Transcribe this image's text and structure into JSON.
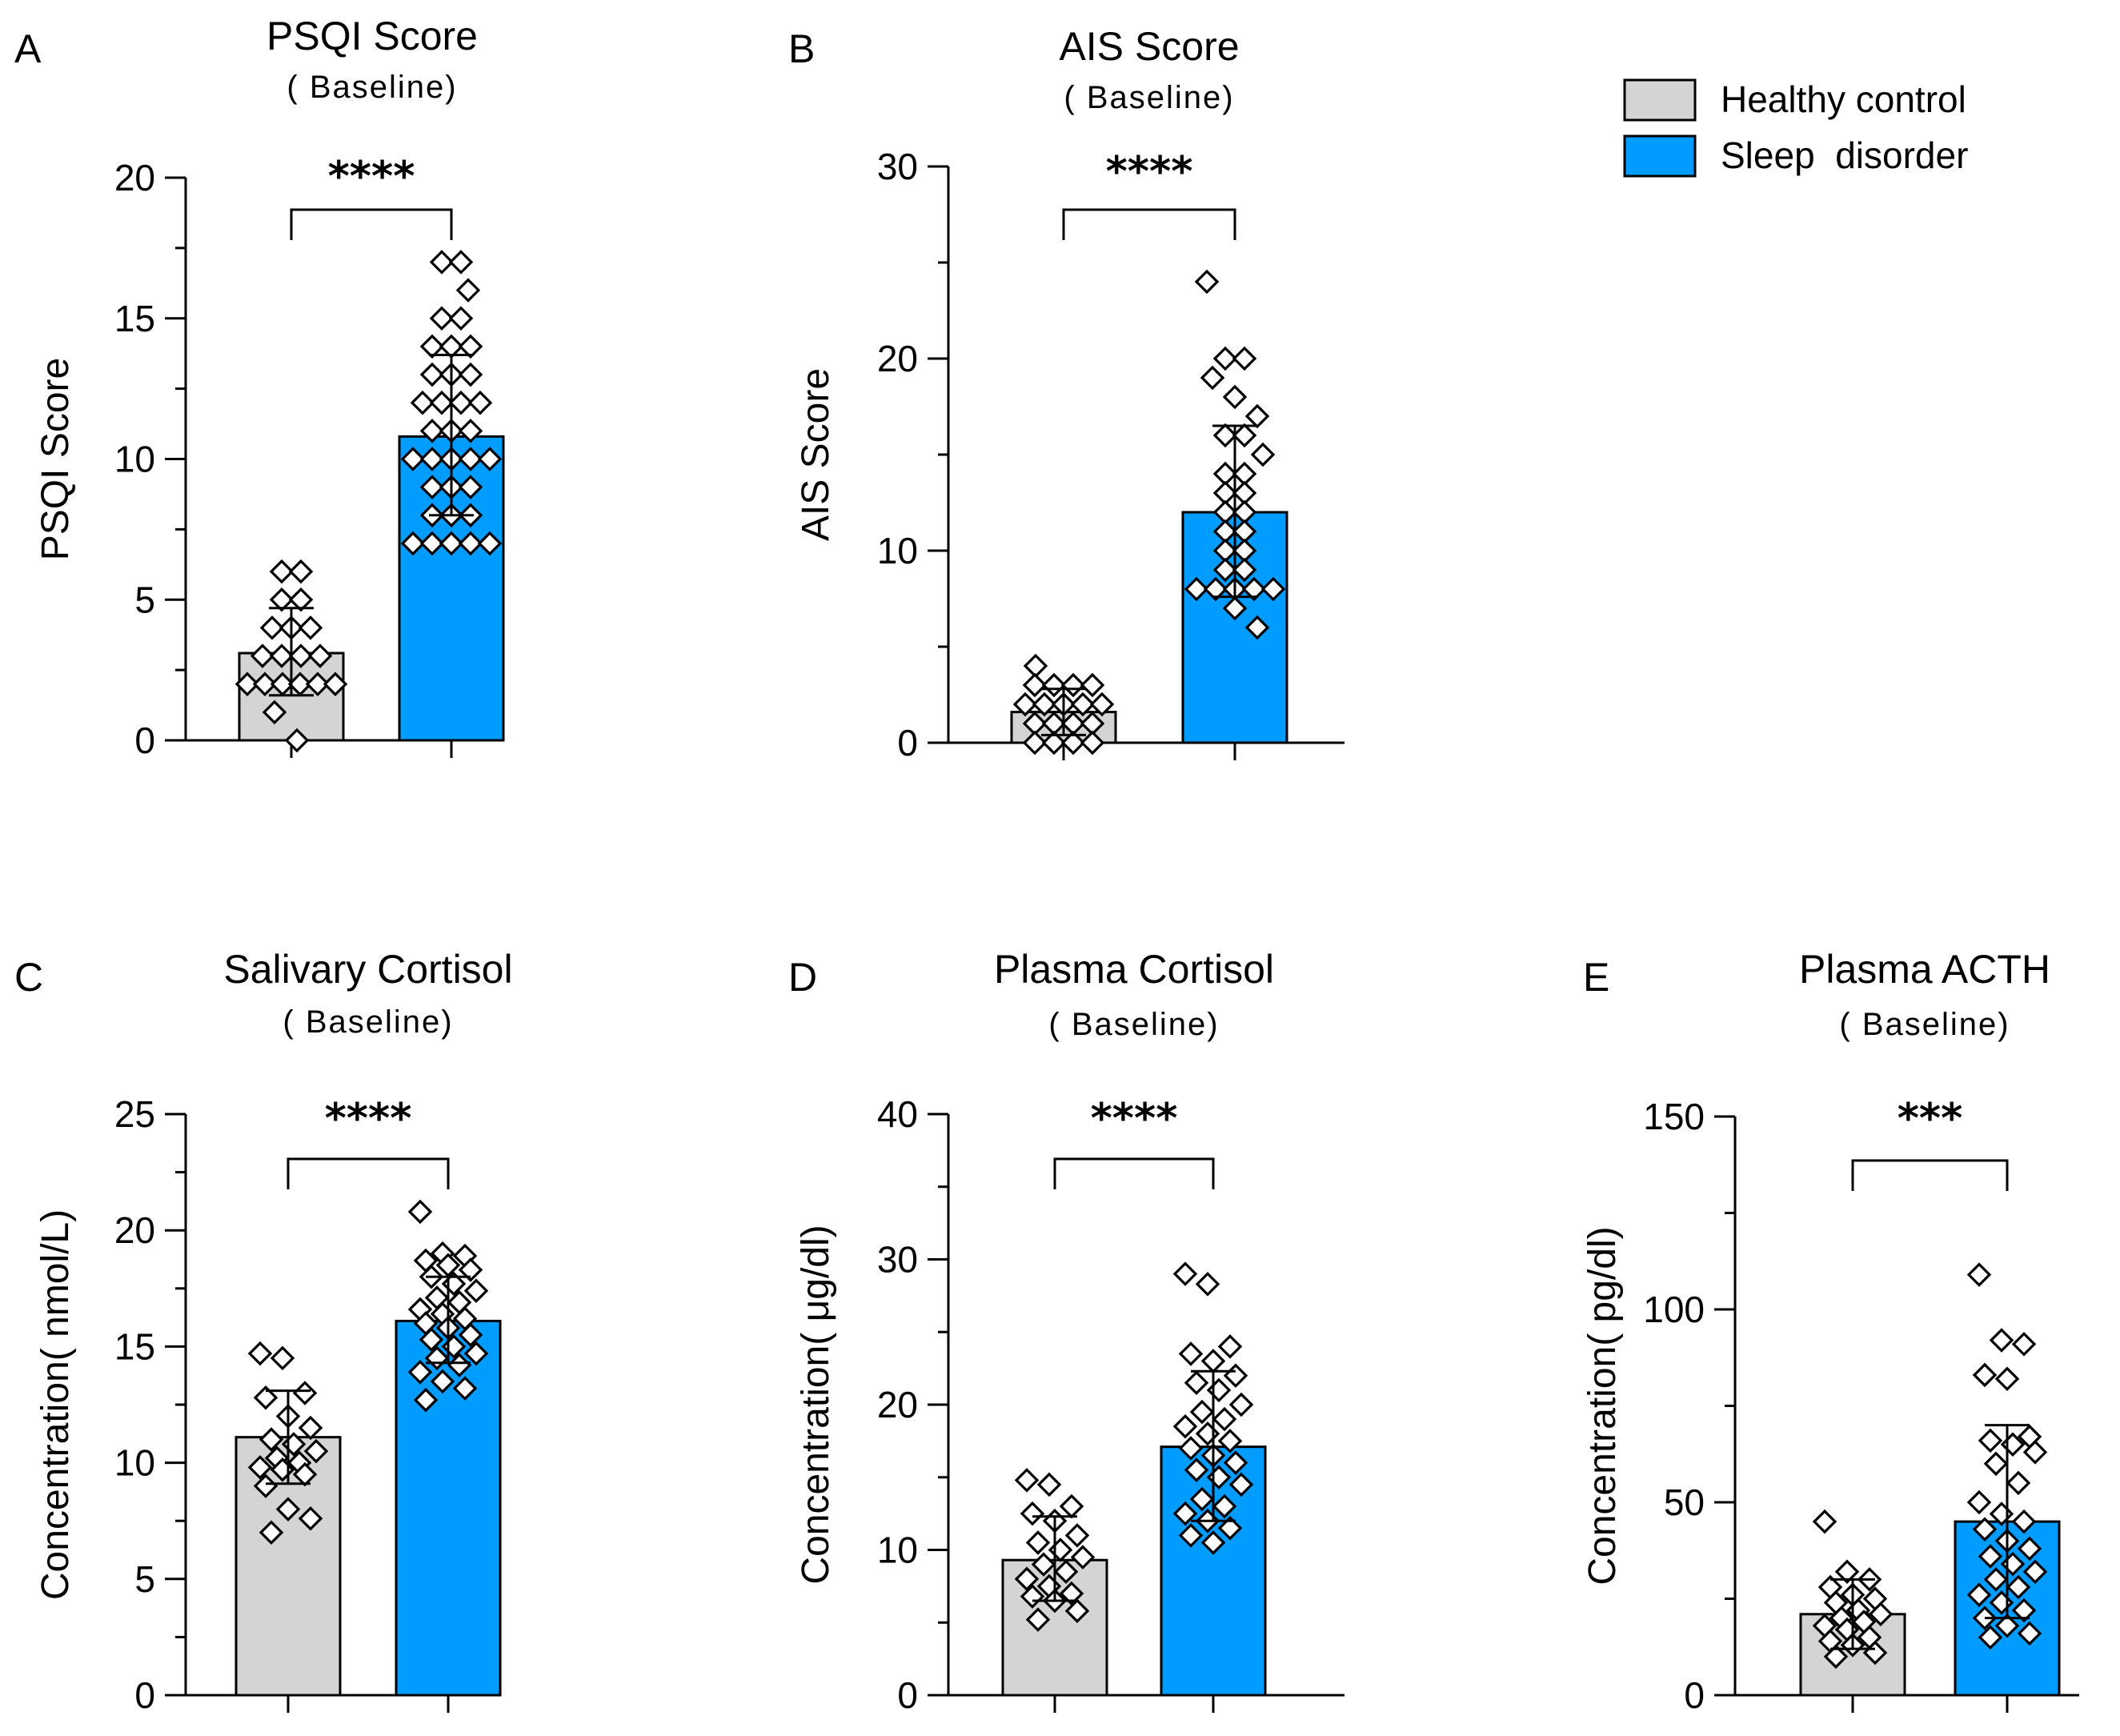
{
  "legend": {
    "items": [
      {
        "label": "Healthy control",
        "color": "#d4d4d4"
      },
      {
        "label": "Sleep  disorder",
        "color": "#009cff"
      }
    ]
  },
  "chart_data": [
    {
      "panel": "A",
      "type": "bar",
      "title": "PSQI Score",
      "subtitle": "( Baseline)",
      "ylabel": "PSQI Score",
      "ylim": [
        0,
        20
      ],
      "yticks": [
        0,
        5,
        10,
        15,
        20
      ],
      "significance": "****",
      "groups": [
        {
          "name": "Healthy control",
          "mean": 3.1,
          "sd_low": 1.6,
          "sd_high": 4.7,
          "points": [
            6,
            6,
            5,
            5,
            4,
            4,
            4,
            3,
            3,
            3,
            3,
            2,
            2,
            2,
            2,
            2,
            2,
            1,
            0
          ]
        },
        {
          "name": "Sleep  disorder",
          "mean": 10.8,
          "sd_low": 8.0,
          "sd_high": 13.7,
          "points": [
            17,
            17,
            16,
            15,
            15,
            14,
            14,
            14,
            13,
            13,
            13,
            12,
            12,
            12,
            12,
            11,
            11,
            11,
            10,
            10,
            10,
            10,
            10,
            9,
            9,
            9,
            8,
            8,
            8,
            7,
            7,
            7,
            7,
            7
          ]
        }
      ]
    },
    {
      "panel": "B",
      "type": "bar",
      "title": "AIS Score",
      "subtitle": "( Baseline)",
      "ylabel": "AIS Score",
      "ylim": [
        0,
        30
      ],
      "yticks": [
        0,
        10,
        20,
        30
      ],
      "significance": "****",
      "groups": [
        {
          "name": "Healthy control",
          "mean": 1.6,
          "sd_low": 0.4,
          "sd_high": 2.8,
          "points": [
            4,
            3,
            3,
            3,
            3,
            2,
            2,
            2,
            2,
            2,
            1,
            1,
            1,
            1,
            0,
            0,
            0,
            0
          ]
        },
        {
          "name": "Sleep  disorder",
          "mean": 12.0,
          "sd_low": 7.6,
          "sd_high": 16.5,
          "points": [
            24,
            20,
            20,
            19,
            18,
            17,
            16,
            16,
            15,
            14,
            14,
            13,
            13,
            12,
            12,
            11,
            11,
            10,
            10,
            9,
            9,
            8,
            8,
            8,
            8,
            8,
            7,
            6
          ]
        }
      ]
    },
    {
      "panel": "C",
      "type": "bar",
      "title": "Salivary Cortisol",
      "subtitle": "( Baseline)",
      "ylabel": "Concentration( nmol/L)",
      "ylim": [
        0,
        25
      ],
      "yticks": [
        0,
        5,
        10,
        15,
        20,
        25
      ],
      "significance": "****",
      "groups": [
        {
          "name": "Healthy control",
          "mean": 11.1,
          "sd_low": 9.1,
          "sd_high": 13.1,
          "points": [
            14.7,
            14.5,
            13.0,
            12.8,
            12.0,
            11.5,
            11.0,
            10.8,
            10.5,
            10.2,
            10.0,
            9.8,
            9.7,
            9.5,
            9.0,
            8.0,
            7.6,
            7.0
          ]
        },
        {
          "name": "Sleep  disorder",
          "mean": 16.1,
          "sd_low": 14.3,
          "sd_high": 18.0,
          "points": [
            20.8,
            19.0,
            18.9,
            18.7,
            18.5,
            18.3,
            18.0,
            17.7,
            17.4,
            17.1,
            16.9,
            16.6,
            16.4,
            16.2,
            16.0,
            15.8,
            15.5,
            15.3,
            15.0,
            14.7,
            14.5,
            14.2,
            13.9,
            13.5,
            13.2,
            12.7
          ]
        }
      ]
    },
    {
      "panel": "D",
      "type": "bar",
      "title": "Plasma Cortisol",
      "subtitle": "( Baseline)",
      "ylabel": "Concentration( μg/dl)",
      "ylim": [
        0,
        40
      ],
      "yticks": [
        0,
        10,
        20,
        30,
        40
      ],
      "significance": "****",
      "groups": [
        {
          "name": "Healthy control",
          "mean": 9.3,
          "sd_low": 6.5,
          "sd_high": 12.3,
          "points": [
            14.8,
            14.5,
            13.0,
            12.5,
            12.0,
            11.0,
            10.5,
            10.0,
            9.5,
            9.0,
            8.5,
            8.0,
            7.5,
            7.0,
            6.8,
            6.5,
            5.8,
            5.2
          ]
        },
        {
          "name": "Sleep  disorder",
          "mean": 17.1,
          "sd_low": 12.0,
          "sd_high": 22.3,
          "points": [
            29.0,
            28.3,
            24.0,
            23.5,
            23.0,
            22.0,
            21.5,
            21.0,
            20.0,
            19.5,
            19.0,
            18.5,
            18.0,
            17.5,
            17.0,
            16.5,
            16.0,
            15.5,
            15.0,
            14.5,
            13.5,
            13.0,
            12.5,
            12.0,
            11.5,
            11.0,
            10.5
          ]
        }
      ]
    },
    {
      "panel": "E",
      "type": "bar",
      "title": "Plasma ACTH",
      "subtitle": "( Baseline)",
      "ylabel": "Concentration( pg/dl)",
      "ylim": [
        0,
        150
      ],
      "yticks": [
        0,
        50,
        100,
        150
      ],
      "significance": "***",
      "groups": [
        {
          "name": "Healthy control",
          "mean": 21.0,
          "sd_low": 12.0,
          "sd_high": 30.0,
          "points": [
            45,
            32,
            30,
            28,
            26,
            25,
            24,
            22,
            21,
            20,
            19,
            18,
            17,
            15,
            14,
            13,
            11,
            10
          ]
        },
        {
          "name": "Sleep  disorder",
          "mean": 45.0,
          "sd_low": 20.0,
          "sd_high": 70.0,
          "points": [
            109,
            92,
            91,
            83,
            82,
            67,
            66,
            65,
            63,
            60,
            55,
            50,
            47,
            45,
            43,
            40,
            38,
            36,
            34,
            32,
            30,
            28,
            26,
            24,
            22,
            20,
            18,
            16,
            15
          ]
        }
      ]
    }
  ]
}
